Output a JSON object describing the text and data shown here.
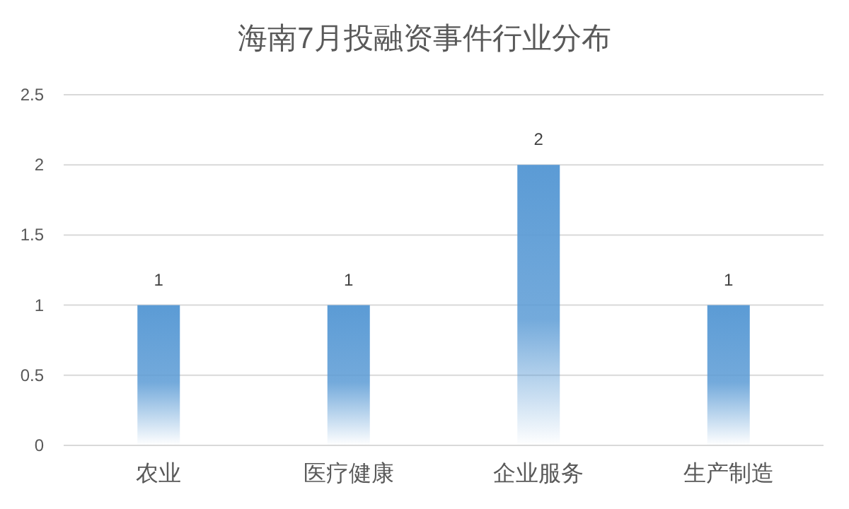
{
  "chart_data": {
    "type": "bar",
    "title": "海南7月投融资事件行业分布",
    "categories": [
      "农业",
      "医疗健康",
      "企业服务",
      "生产制造"
    ],
    "values": [
      1,
      1,
      2,
      1
    ],
    "color": "#5b9bd5",
    "ylim": [
      0,
      2.5
    ],
    "yticks": [
      0,
      0.5,
      1,
      1.5,
      2,
      2.5
    ],
    "grid": "y",
    "data_labels": true
  }
}
